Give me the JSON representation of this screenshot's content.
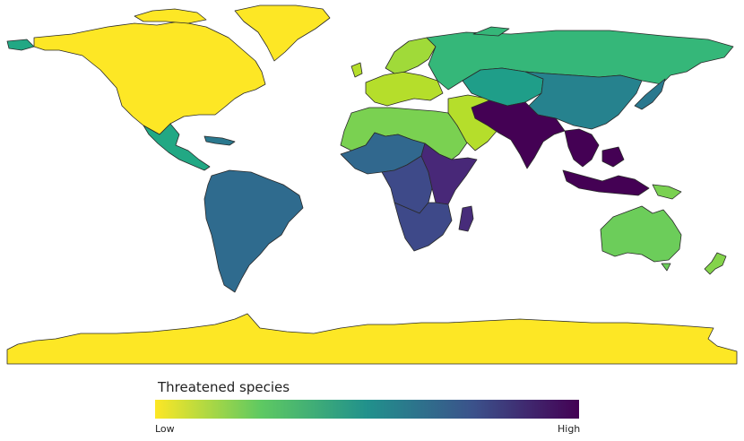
{
  "legend": {
    "title": "Threatened species",
    "low_label": "Low",
    "high_label": "High",
    "scale": [
      "#fde725",
      "#5ec962",
      "#21918c",
      "#3b528b",
      "#440154"
    ]
  },
  "regions": [
    {
      "id": "north-america",
      "color": "#fde725"
    },
    {
      "id": "greenland",
      "color": "#fde725"
    },
    {
      "id": "central-america",
      "color": "#22a884"
    },
    {
      "id": "caribbean",
      "color": "#2a788e"
    },
    {
      "id": "south-america",
      "color": "#2f6b8e"
    },
    {
      "id": "western-europe",
      "color": "#b5de2b"
    },
    {
      "id": "scandinavia",
      "color": "#a0da39"
    },
    {
      "id": "russia",
      "color": "#35b779"
    },
    {
      "id": "north-africa",
      "color": "#7ad151"
    },
    {
      "id": "middle-east",
      "color": "#b5de2b"
    },
    {
      "id": "central-asia",
      "color": "#1f9e89"
    },
    {
      "id": "china",
      "color": "#26828e"
    },
    {
      "id": "japan",
      "color": "#2a788e"
    },
    {
      "id": "west-africa",
      "color": "#31688e"
    },
    {
      "id": "central-africa",
      "color": "#3e4a89"
    },
    {
      "id": "east-africa",
      "color": "#482878"
    },
    {
      "id": "southern-africa",
      "color": "#3e4989"
    },
    {
      "id": "madagascar",
      "color": "#472c7a"
    },
    {
      "id": "south-asia",
      "color": "#440154"
    },
    {
      "id": "southeast-asia",
      "color": "#440154"
    },
    {
      "id": "indonesia",
      "color": "#440154"
    },
    {
      "id": "papua",
      "color": "#7ad151"
    },
    {
      "id": "australia",
      "color": "#6ccd5a"
    },
    {
      "id": "new-zealand",
      "color": "#84d44b"
    },
    {
      "id": "antarctica",
      "color": "#fde725"
    }
  ]
}
